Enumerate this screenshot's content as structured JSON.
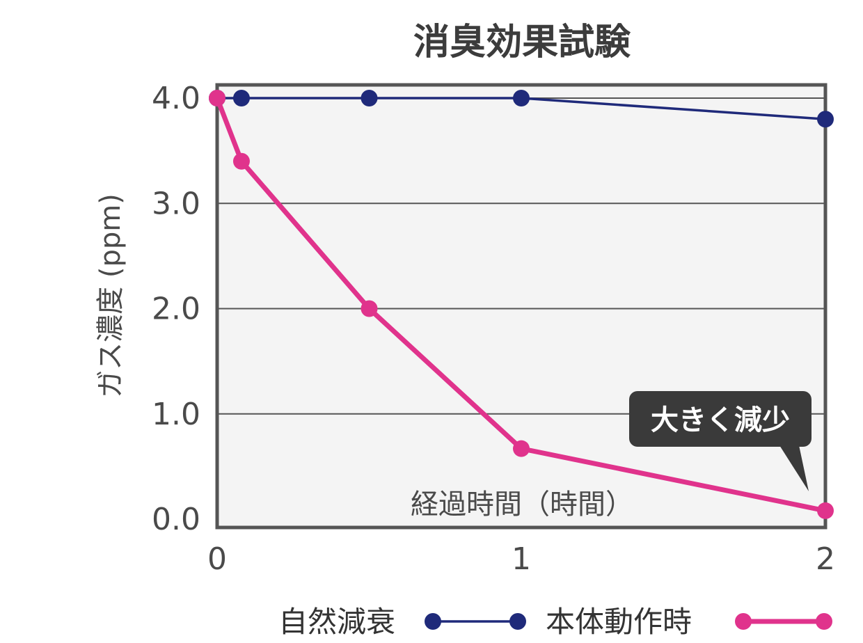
{
  "chart_data": {
    "type": "line",
    "title": "消臭効果試験",
    "xlabel": "経過時間（時間）",
    "ylabel": "ガス濃度 (ppm)",
    "xlim": [
      0,
      2
    ],
    "ylim": [
      0,
      4
    ],
    "x_ticks": [
      "0",
      "1",
      "2"
    ],
    "y_ticks": [
      "0.0",
      "1.0",
      "2.0",
      "3.0",
      "4.0"
    ],
    "grid": true,
    "legend_position": "bottom",
    "series": [
      {
        "name": "自然減衰",
        "color": "#1f2a7a",
        "x": [
          0,
          0.08,
          0.5,
          1,
          2
        ],
        "y": [
          4.0,
          4.0,
          4.0,
          4.0,
          3.8
        ]
      },
      {
        "name": "本体動作時",
        "color": "#e0338c",
        "x": [
          0,
          0.08,
          0.5,
          1,
          2
        ],
        "y": [
          4.0,
          3.4,
          2.0,
          0.67,
          0.08
        ]
      }
    ],
    "annotation": {
      "text": "大きく減少",
      "series_index": 1,
      "point_index": 4
    }
  }
}
